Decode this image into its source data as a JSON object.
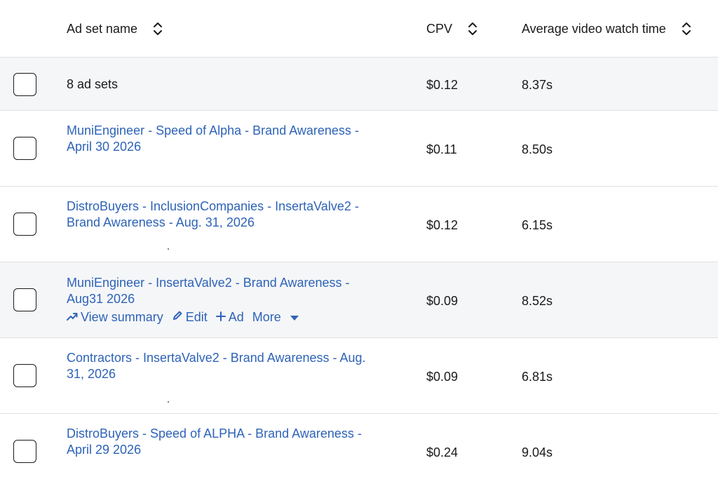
{
  "columns": {
    "name": "Ad set name",
    "cpv": "CPV",
    "watch_time": "Average video watch time"
  },
  "summary": {
    "label": "8 ad sets",
    "cpv": "$0.12",
    "watch_time": "8.37s"
  },
  "rows": [
    {
      "name": "MuniEngineer - Speed of Alpha - Brand Awareness - April 30 2026",
      "cpv": "$0.11",
      "watch_time": "8.50s"
    },
    {
      "name": "DistroBuyers - InclusionCompanies - InsertaValve2 - Brand Awareness - Aug. 31, 2026",
      "cpv": "$0.12",
      "watch_time": "6.15s"
    },
    {
      "name": "MuniEngineer - InsertaValve2 - Brand Awareness - Aug31 2026",
      "cpv": "$0.09",
      "watch_time": "8.52s"
    },
    {
      "name": "Contractors - InsertaValve2 - Brand Awareness - Aug. 31, 2026",
      "cpv": "$0.09",
      "watch_time": "6.81s"
    },
    {
      "name": "DistroBuyers - Speed of ALPHA - Brand Awareness - April 29 2026",
      "cpv": "$0.24",
      "watch_time": "9.04s"
    }
  ],
  "row_actions": {
    "view_summary": "View summary",
    "edit": "Edit",
    "ad": "Ad",
    "more": "More"
  },
  "icons": {
    "sort": "sort-updown-icon",
    "trend": "trend-up-icon",
    "edit": "pencil-icon",
    "add": "plus-icon",
    "caret": "caret-down-icon"
  },
  "colors": {
    "link": "#2e63b8",
    "hover_row": "#f5f6f8",
    "border": "#e0e0e0"
  }
}
